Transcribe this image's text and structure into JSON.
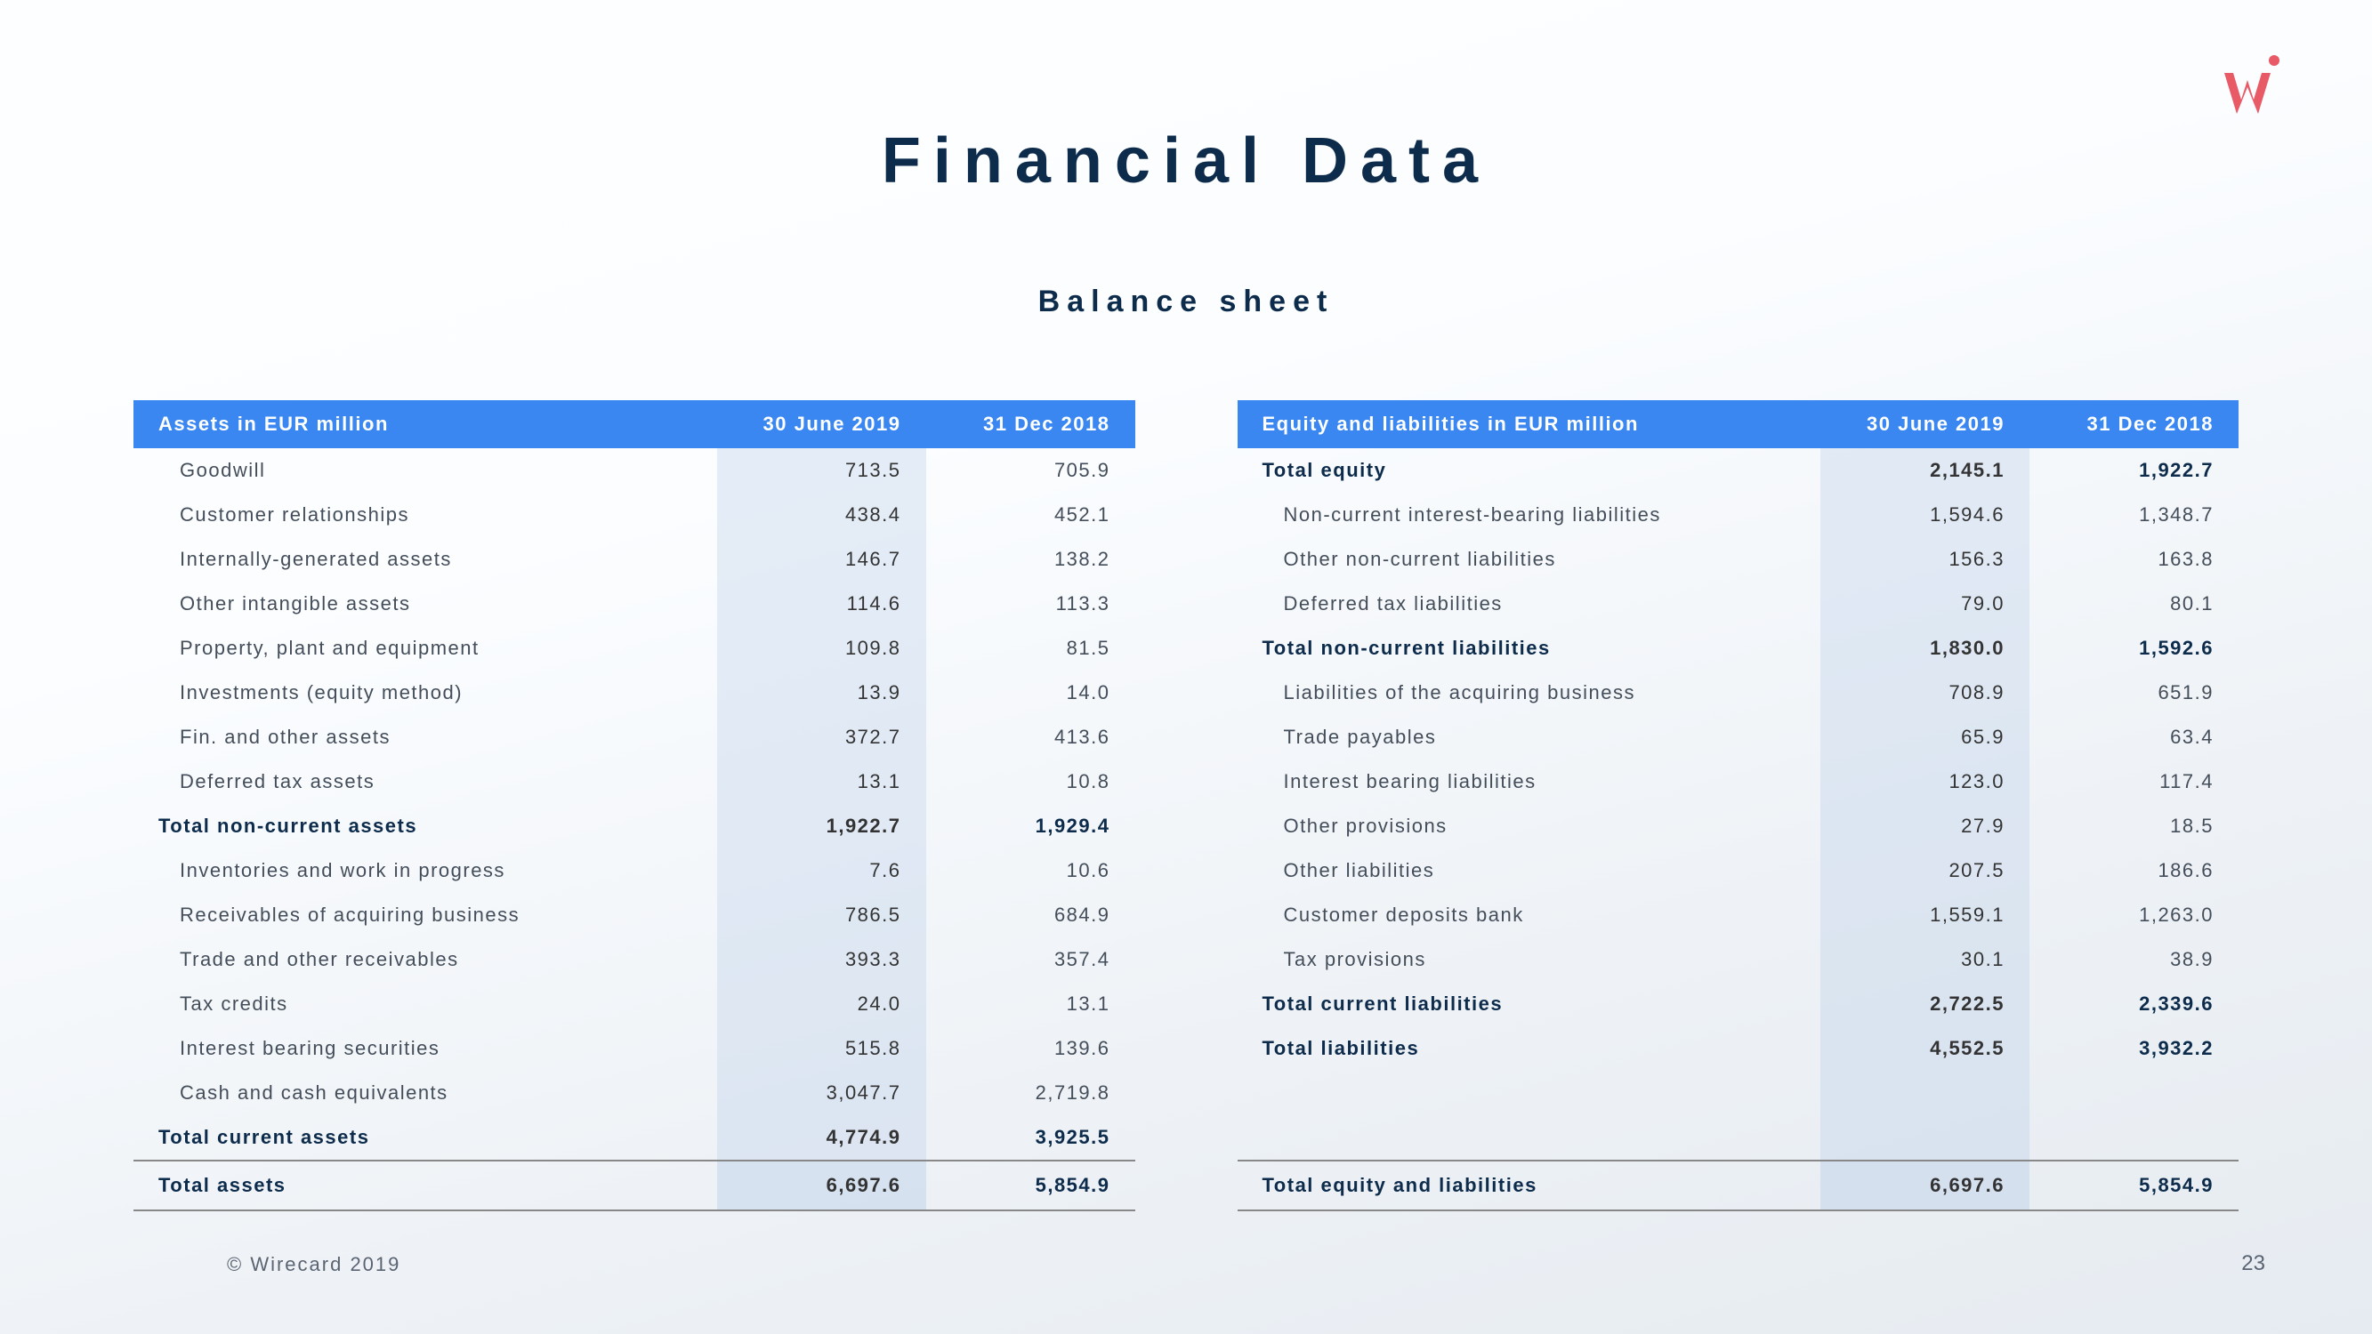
{
  "title": "Financial Data",
  "subtitle": "Balance sheet",
  "footer": {
    "copyright": "© Wirecard 2019",
    "page": "23"
  },
  "colors": {
    "header_bg": "#3a87f2",
    "header_fg": "#ffffff",
    "text_primary": "#0d2b4b",
    "text_body": "#444e5a",
    "col_highlight": "rgba(186,207,233,0.35)",
    "logo": "#e85a65"
  },
  "assets_table": {
    "header": {
      "label": "Assets in EUR million",
      "col2": "30 June 2019",
      "col3": "31 Dec 2018"
    },
    "rows": [
      {
        "label": "Goodwill",
        "v1": "713.5",
        "v2": "705.9",
        "bold": false
      },
      {
        "label": "Customer relationships",
        "v1": "438.4",
        "v2": "452.1",
        "bold": false
      },
      {
        "label": "Internally-generated assets",
        "v1": "146.7",
        "v2": "138.2",
        "bold": false
      },
      {
        "label": "Other intangible assets",
        "v1": "114.6",
        "v2": "113.3",
        "bold": false
      },
      {
        "label": "Property, plant and equipment",
        "v1": "109.8",
        "v2": "81.5",
        "bold": false
      },
      {
        "label": "Investments (equity method)",
        "v1": "13.9",
        "v2": "14.0",
        "bold": false
      },
      {
        "label": "Fin. and other assets",
        "v1": "372.7",
        "v2": "413.6",
        "bold": false
      },
      {
        "label": "Deferred tax assets",
        "v1": "13.1",
        "v2": "10.8",
        "bold": false
      },
      {
        "label": "Total non-current assets",
        "v1": "1,922.7",
        "v2": "1,929.4",
        "bold": true
      },
      {
        "label": "Inventories and work in progress",
        "v1": "7.6",
        "v2": "10.6",
        "bold": false
      },
      {
        "label": "Receivables of acquiring business",
        "v1": "786.5",
        "v2": "684.9",
        "bold": false
      },
      {
        "label": "Trade and other receivables",
        "v1": "393.3",
        "v2": "357.4",
        "bold": false
      },
      {
        "label": "Tax credits",
        "v1": "24.0",
        "v2": "13.1",
        "bold": false
      },
      {
        "label": "Interest bearing securities",
        "v1": "515.8",
        "v2": "139.6",
        "bold": false
      },
      {
        "label": "Cash and cash equivalents",
        "v1": "3,047.7",
        "v2": "2,719.8",
        "bold": false
      },
      {
        "label": "Total current assets",
        "v1": "4,774.9",
        "v2": "3,925.5",
        "bold": true
      }
    ],
    "total": {
      "label": "Total assets",
      "v1": "6,697.6",
      "v2": "5,854.9"
    }
  },
  "liab_table": {
    "header": {
      "label": "Equity and liabilities in EUR million",
      "col2": "30 June 2019",
      "col3": "31 Dec 2018"
    },
    "rows": [
      {
        "label": "Total equity",
        "v1": "2,145.1",
        "v2": "1,922.7",
        "bold": true
      },
      {
        "label": "Non-current interest-bearing liabilities",
        "v1": "1,594.6",
        "v2": "1,348.7",
        "bold": false
      },
      {
        "label": "Other non-current liabilities",
        "v1": "156.3",
        "v2": "163.8",
        "bold": false
      },
      {
        "label": "Deferred tax liabilities",
        "v1": "79.0",
        "v2": "80.1",
        "bold": false
      },
      {
        "label": "Total non-current liabilities",
        "v1": "1,830.0",
        "v2": "1,592.6",
        "bold": true
      },
      {
        "label": "Liabilities of the acquiring business",
        "v1": "708.9",
        "v2": "651.9",
        "bold": false
      },
      {
        "label": "Trade payables",
        "v1": "65.9",
        "v2": "63.4",
        "bold": false
      },
      {
        "label": "Interest bearing liabilities",
        "v1": "123.0",
        "v2": "117.4",
        "bold": false
      },
      {
        "label": "Other provisions",
        "v1": "27.9",
        "v2": "18.5",
        "bold": false
      },
      {
        "label": "Other liabilities",
        "v1": "207.5",
        "v2": "186.6",
        "bold": false
      },
      {
        "label": "Customer deposits bank",
        "v1": "1,559.1",
        "v2": "1,263.0",
        "bold": false
      },
      {
        "label": "Tax provisions",
        "v1": "30.1",
        "v2": "38.9",
        "bold": false
      },
      {
        "label": "Total current liabilities",
        "v1": "2,722.5",
        "v2": "2,339.6",
        "bold": true
      },
      {
        "label": "Total liabilities",
        "v1": "4,552.5",
        "v2": "3,932.2",
        "bold": true
      }
    ],
    "spacers": 2,
    "total": {
      "label": "Total equity and liabilities",
      "v1": "6,697.6",
      "v2": "5,854.9"
    }
  }
}
